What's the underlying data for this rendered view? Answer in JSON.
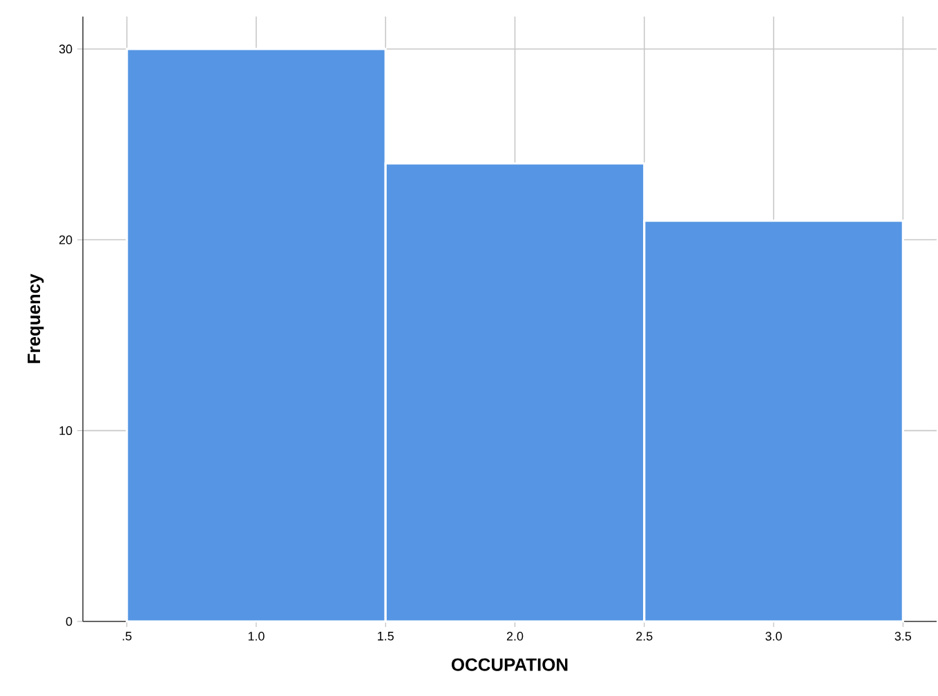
{
  "chart_data": {
    "type": "histogram",
    "xlabel": "OCCUPATION",
    "ylabel": "Frequency",
    "bins": [
      0.5,
      1.5,
      2.5,
      3.5
    ],
    "values": [
      30,
      24,
      21
    ],
    "color": "#5595e3",
    "xlim": [
      0.33,
      3.63
    ],
    "ylim": [
      0,
      31.7
    ],
    "xticks": [
      {
        "value": 0.5,
        "label": ".5"
      },
      {
        "value": 1.0,
        "label": "1.0"
      },
      {
        "value": 1.5,
        "label": "1.5"
      },
      {
        "value": 2.0,
        "label": "2.0"
      },
      {
        "value": 2.5,
        "label": "2.5"
      },
      {
        "value": 3.0,
        "label": "3.0"
      },
      {
        "value": 3.5,
        "label": "3.5"
      }
    ],
    "yticks": [
      0,
      10,
      20,
      30
    ],
    "grid": true
  }
}
